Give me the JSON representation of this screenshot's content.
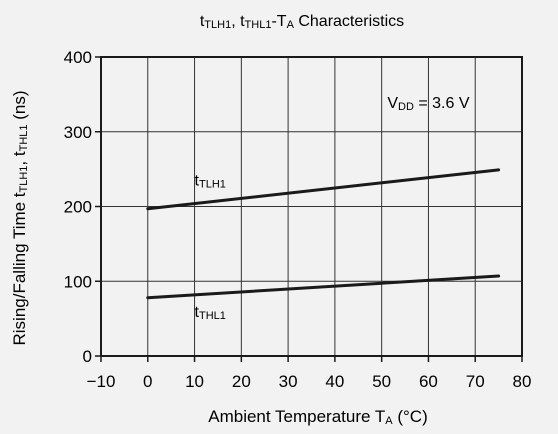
{
  "chart_data": {
    "type": "line",
    "title": {
      "a": "t",
      "a_sub": "TLH1",
      "sep": ", ",
      "b": "t",
      "b_sub": "THL1",
      "c": "-T",
      "c_sub": "A",
      "d": " Characteristics"
    },
    "xlabel": {
      "text": "Ambient Temperature   T",
      "sub": "A",
      "unit": " (°C)"
    },
    "ylabel": {
      "text": "Rising/Falling Time   t",
      "sub1": "TLH1",
      "sep": ", t",
      "sub2": "THL1",
      "unit": " (ns)"
    },
    "xlim": [
      -10,
      80
    ],
    "ylim": [
      0,
      400
    ],
    "x_ticks": [
      -10,
      0,
      10,
      20,
      30,
      40,
      50,
      60,
      70,
      80
    ],
    "x_tick_labels": [
      "−10",
      "0",
      "10",
      "20",
      "30",
      "40",
      "50",
      "60",
      "70",
      "80"
    ],
    "y_ticks": [
      0,
      100,
      200,
      300,
      400
    ],
    "y_tick_labels": [
      "0",
      "100",
      "200",
      "300",
      "400"
    ],
    "x_grid": [
      0,
      10,
      20,
      30,
      40,
      50,
      60,
      70
    ],
    "y_grid": [
      100,
      200,
      300
    ],
    "grid": true,
    "series": [
      {
        "label_main": "t",
        "label_sub": "TLH1",
        "x": [
          0,
          75
        ],
        "values": [
          197,
          249
        ],
        "label_pos": [
          10,
          228
        ]
      },
      {
        "label_main": "t",
        "label_sub": "THL1",
        "x": [
          0,
          75
        ],
        "values": [
          78,
          107
        ],
        "label_pos": [
          10,
          52
        ]
      }
    ],
    "annotation": {
      "main": "V",
      "sub": "DD",
      "rest": " = 3.6 V",
      "pos": [
        60,
        340
      ]
    }
  }
}
